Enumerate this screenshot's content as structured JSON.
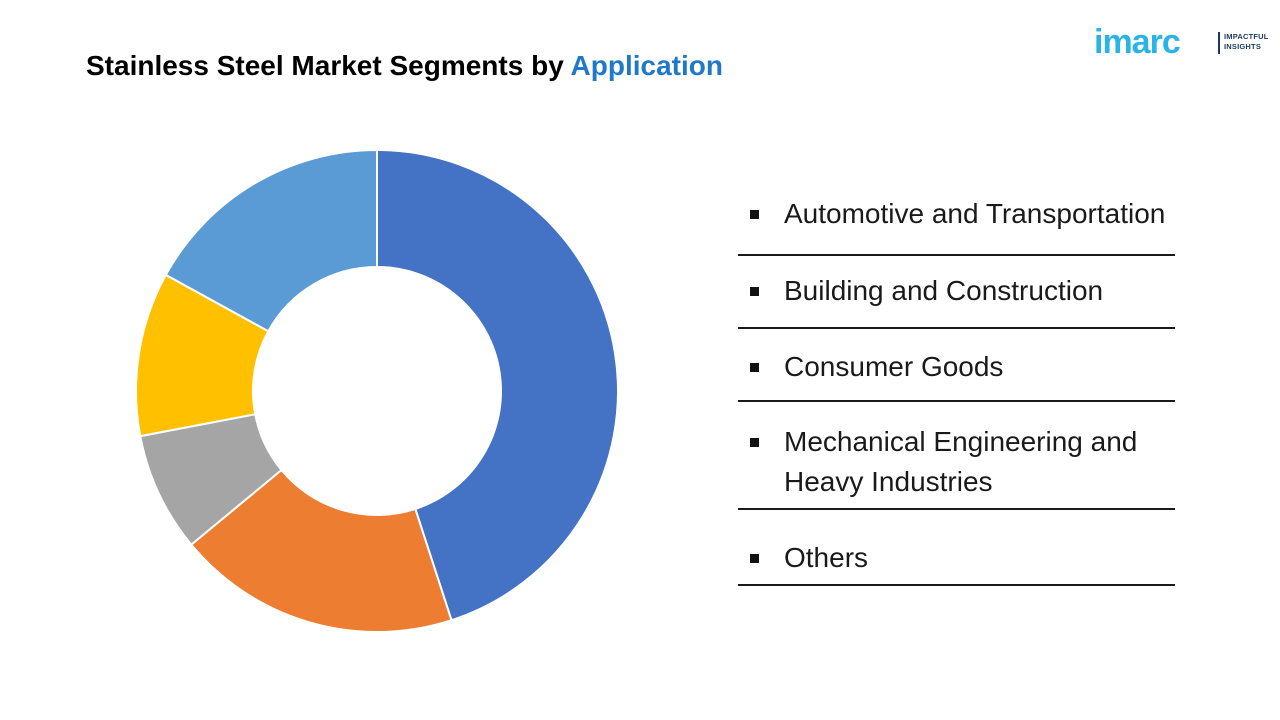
{
  "title": {
    "part1": "Stainless Steel Market",
    "part2": "Segments by",
    "accent": "Application"
  },
  "logo": {
    "word": "imarc",
    "tagline_line1": "IMPACTFUL",
    "tagline_line2": "INSIGHTS"
  },
  "colors": {
    "accent": "#1f78c8",
    "logo": "#2ab4e6"
  },
  "chart_data": {
    "type": "pie",
    "hole": "donut",
    "categories": [
      "Automotive and Transportation",
      "Building and Construction",
      "Consumer Goods",
      "Mechanical Engineering and Heavy Industries",
      "Others"
    ],
    "values": [
      45,
      19,
      8,
      11,
      17
    ],
    "colors": [
      "#4472c4",
      "#ed7d31",
      "#a5a5a5",
      "#ffc000",
      "#5b9bd5"
    ],
    "legend_position": "right"
  }
}
